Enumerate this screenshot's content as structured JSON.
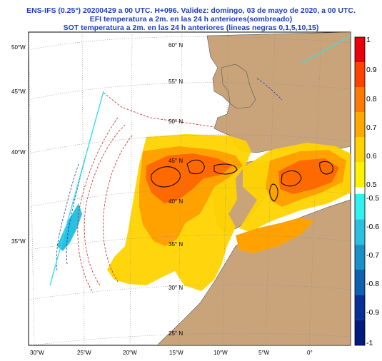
{
  "header": {
    "line1": "ENS-IFS (0.25°) 20200429 a 00 UTC.  H+096. Validez: domingo, 03 de mayo de 2020,  a  00 UTC.",
    "line2": "EFI temperatura a 2m. en las 24 h anteriores(sombreado)",
    "line3": "SOT temperatura a 2m. en las 24 h anteriores (lineas negras 0,1,5,10,15)"
  },
  "grid_labels": {
    "lat_outside": [
      "50°W",
      "45°W",
      "40°W",
      "35°W"
    ],
    "lat_inside": [
      "60° N",
      "55° N",
      "50° N",
      "45° N",
      "40° N",
      "35° N",
      "30° N",
      "25° N"
    ],
    "lon_bottom": [
      "30°W",
      "25°W",
      "20°W",
      "15°W",
      "10°W",
      "5°W",
      "0°"
    ]
  },
  "colorbar": {
    "labels": [
      "1",
      "0.9",
      "0.8",
      "0.7",
      "0.6",
      "0.5",
      "-0.5",
      "-0.6",
      "-0.7",
      "-0.8",
      "-0.9",
      "-1"
    ],
    "colors_positive": [
      "#e8000b",
      "#ff4200",
      "#ff7a00",
      "#ffa800",
      "#ffd200",
      "#fff200"
    ],
    "colors_negative": [
      "#33f0f0",
      "#2ac0e0",
      "#1a90c8",
      "#1060b0",
      "#083098",
      "#001a80"
    ]
  },
  "map_colors": {
    "ocean": "#ffffff",
    "land": "#c9a47a",
    "efi_high": "#ff6a00",
    "efi_mid": "#ffa200",
    "efi_low": "#ffd400",
    "sot_contours": "#000000",
    "graticule": "#8a8a8a"
  }
}
